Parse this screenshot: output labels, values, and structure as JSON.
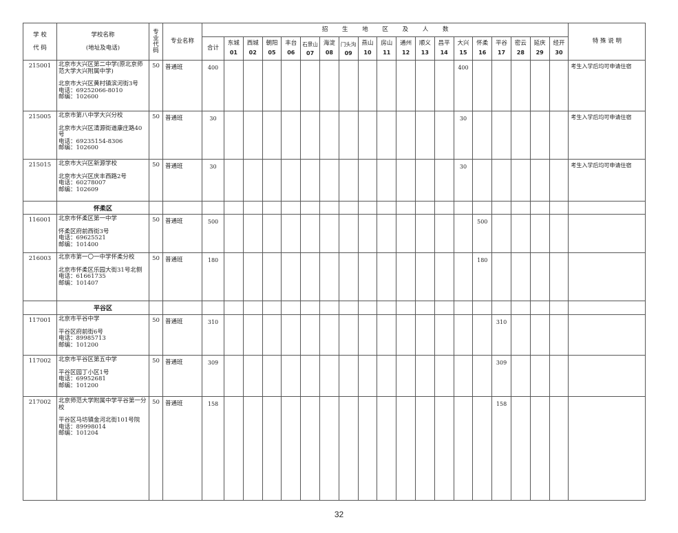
{
  "header": {
    "school_code": "学 校\n代 码",
    "school_name": "学校名称",
    "school_name_sub": "(地址及电话)",
    "major_code": "专业代码",
    "major_name": "专业名称",
    "group_title": "招 生 地 区 及 人 数",
    "total": "合计",
    "special_note": "特 殊 说 明",
    "regions": [
      {
        "name": "东城",
        "code": "01"
      },
      {
        "name": "西城",
        "code": "02"
      },
      {
        "name": "朝阳",
        "code": "05"
      },
      {
        "name": "丰台",
        "code": "06"
      },
      {
        "name": "石景山",
        "code": "07"
      },
      {
        "name": "海淀",
        "code": "08"
      },
      {
        "name": "门头沟",
        "code": "09"
      },
      {
        "name": "燕山",
        "code": "10"
      },
      {
        "name": "房山",
        "code": "11"
      },
      {
        "name": "通州",
        "code": "12"
      },
      {
        "name": "顺义",
        "code": "13"
      },
      {
        "name": "昌平",
        "code": "14"
      },
      {
        "name": "大兴",
        "code": "15"
      },
      {
        "name": "怀柔",
        "code": "16"
      },
      {
        "name": "平谷",
        "code": "17"
      },
      {
        "name": "密云",
        "code": "28"
      },
      {
        "name": "延庆",
        "code": "29"
      },
      {
        "name": "经开",
        "code": "30"
      }
    ]
  },
  "rows": [
    {
      "code": "215001",
      "name": "北京市大兴区第二中学(原北京师范大学大兴附属中学)",
      "address": "北京市大兴区黄村镇滨河街3号",
      "phone": "电话：69252066-8010",
      "postcode": "邮编：102600",
      "major_code": "50",
      "major_name": "普通班",
      "total": "400",
      "region": "大兴",
      "count": "400",
      "note": "考生入学后均可申请住宿"
    },
    {
      "code": "215005",
      "name": "北京市第八中学大兴分校",
      "address": "北京市大兴区清源街道康庄路40号",
      "phone": "电话：69235154-8306",
      "postcode": "邮编：102600",
      "major_code": "50",
      "major_name": "普通班",
      "total": "30",
      "region": "大兴",
      "count": "30",
      "note": "考生入学后均可申请住宿"
    },
    {
      "code": "215015",
      "name": "北京市大兴区新源学校",
      "address": "北京市大兴区庆丰西路2号",
      "phone": "电话：60278007",
      "postcode": "邮编：102609",
      "major_code": "50",
      "major_name": "普通班",
      "total": "30",
      "region": "大兴",
      "count": "30",
      "note": "考生入学后均可申请住宿"
    },
    {
      "section": "怀柔区"
    },
    {
      "code": "116001",
      "name": "北京市怀柔区第一中学",
      "address": "怀柔区府前西街3号",
      "phone": "电话：69625521",
      "postcode": "邮编：101400",
      "major_code": "50",
      "major_name": "普通班",
      "total": "500",
      "region": "怀柔",
      "count": "500",
      "note": ""
    },
    {
      "code": "216003",
      "name": "北京市第一〇一中学怀柔分校",
      "address": "北京市怀柔区乐园大街31号北侧",
      "phone": "电话：61661735",
      "postcode": "邮编：101407",
      "major_code": "50",
      "major_name": "普通班",
      "total": "180",
      "region": "怀柔",
      "count": "180",
      "note": ""
    },
    {
      "section": "平谷区"
    },
    {
      "code": "117001",
      "name": "北京市平谷中学",
      "address": "平谷区府前街6号",
      "phone": "电话：89985713",
      "postcode": "邮编：101200",
      "major_code": "50",
      "major_name": "普通班",
      "total": "310",
      "region": "平谷",
      "count": "310",
      "note": ""
    },
    {
      "code": "117002",
      "name": "北京市平谷区第五中学",
      "address": "平谷区园丁小区1号",
      "phone": "电话：69952681",
      "postcode": "邮编：101200",
      "major_code": "50",
      "major_name": "普通班",
      "total": "309",
      "region": "平谷",
      "count": "309",
      "note": ""
    },
    {
      "code": "217002",
      "name": "北京师范大学附属中学平谷第一分校",
      "address": "平谷区马坊镇金河北街101号院",
      "phone": "电话：89998014",
      "postcode": "邮编：101204",
      "major_code": "50",
      "major_name": "普通班",
      "total": "158",
      "region": "平谷",
      "count": "158",
      "note": ""
    }
  ],
  "page_number": "32"
}
